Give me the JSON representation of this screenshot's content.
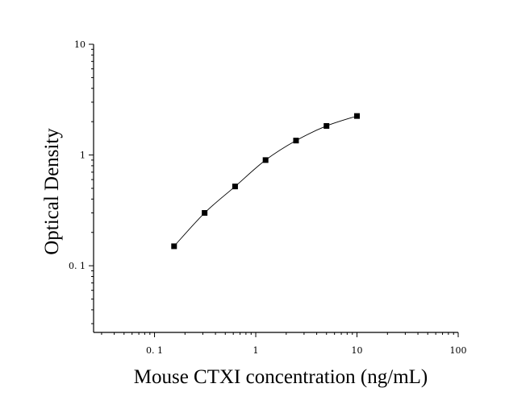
{
  "chart_data": {
    "type": "scatter",
    "title": "",
    "xlabel": "Mouse CTXI concentration (ng/mL)",
    "ylabel": "Optical Density",
    "xscale": "log",
    "yscale": "log",
    "xlim": [
      0.025,
      100
    ],
    "ylim": [
      0.025,
      10
    ],
    "x_ticks": [
      {
        "value": 0.1,
        "label": "0. 1"
      },
      {
        "value": 1,
        "label": "1"
      },
      {
        "value": 10,
        "label": "10"
      },
      {
        "value": 100,
        "label": "100"
      }
    ],
    "y_ticks": [
      {
        "value": 0.1,
        "label": "0. 1"
      },
      {
        "value": 1,
        "label": "1"
      },
      {
        "value": 10,
        "label": "10"
      }
    ],
    "grid": false,
    "legend": "none",
    "fit_curve": true,
    "colors": {
      "points": "#000000",
      "curve": "#000000",
      "axis": "#000000"
    },
    "series": [
      {
        "x": [
          0.156,
          0.3125,
          0.625,
          1.25,
          2.5,
          5,
          10
        ],
        "y": [
          0.15,
          0.3,
          0.52,
          0.9,
          1.35,
          1.83,
          2.25
        ]
      }
    ]
  }
}
